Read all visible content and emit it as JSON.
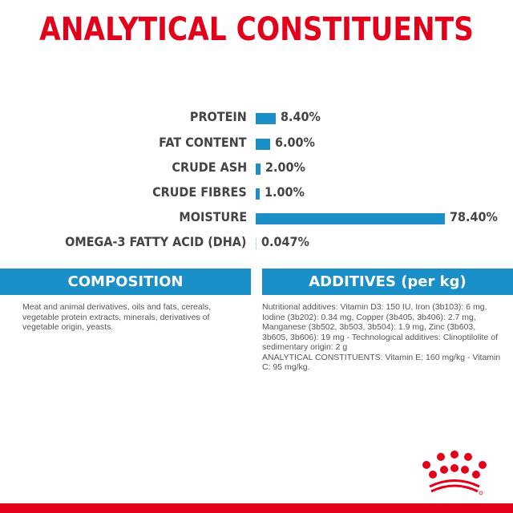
{
  "title": "ANALYTICAL CONSTITUENTS",
  "chart_data": {
    "type": "bar",
    "orientation": "horizontal",
    "categories": [
      "PROTEIN",
      "FAT CONTENT",
      "CRUDE ASH",
      "CRUDE FIBRES",
      "MOISTURE",
      "OMEGA-3 FATTY ACID (DHA)"
    ],
    "values": [
      8.4,
      6.0,
      2.0,
      1.0,
      78.4,
      0.047
    ],
    "labels": [
      "8.40%",
      "6.00%",
      "2.00%",
      "1.00%",
      "78.40%",
      "0.047%"
    ],
    "bar_color": "#1a8fc8"
  },
  "composition": {
    "header": "COMPOSITION",
    "text": "Meat and animal derivatives, oils and fats, cereals, vegetable protein extracts, minerals, derivatives of vegetable origin, yeasts."
  },
  "additives": {
    "header": "ADDITIVES (per kg)",
    "text": "Nutritional additives: Vitamin D3: 150 IU, Iron (3b103): 6 mg, Iodine (3b202): 0.34 mg, Copper (3b405, 3b406): 2.7 mg, Manganese (3b502, 3b503, 3b504): 1.9 mg, Zinc (3b603, 3b605, 3b606): 19 mg - Technological additives: Clinoptilolite of sedimentary origin: 2 g",
    "text2": "ANALYTICAL CONSTITUENTS: Vitamin E: 160 mg/kg - Vitamin C: 95 mg/kg."
  },
  "brand_color": "#e2001a",
  "logo": "royal-crown-logo"
}
